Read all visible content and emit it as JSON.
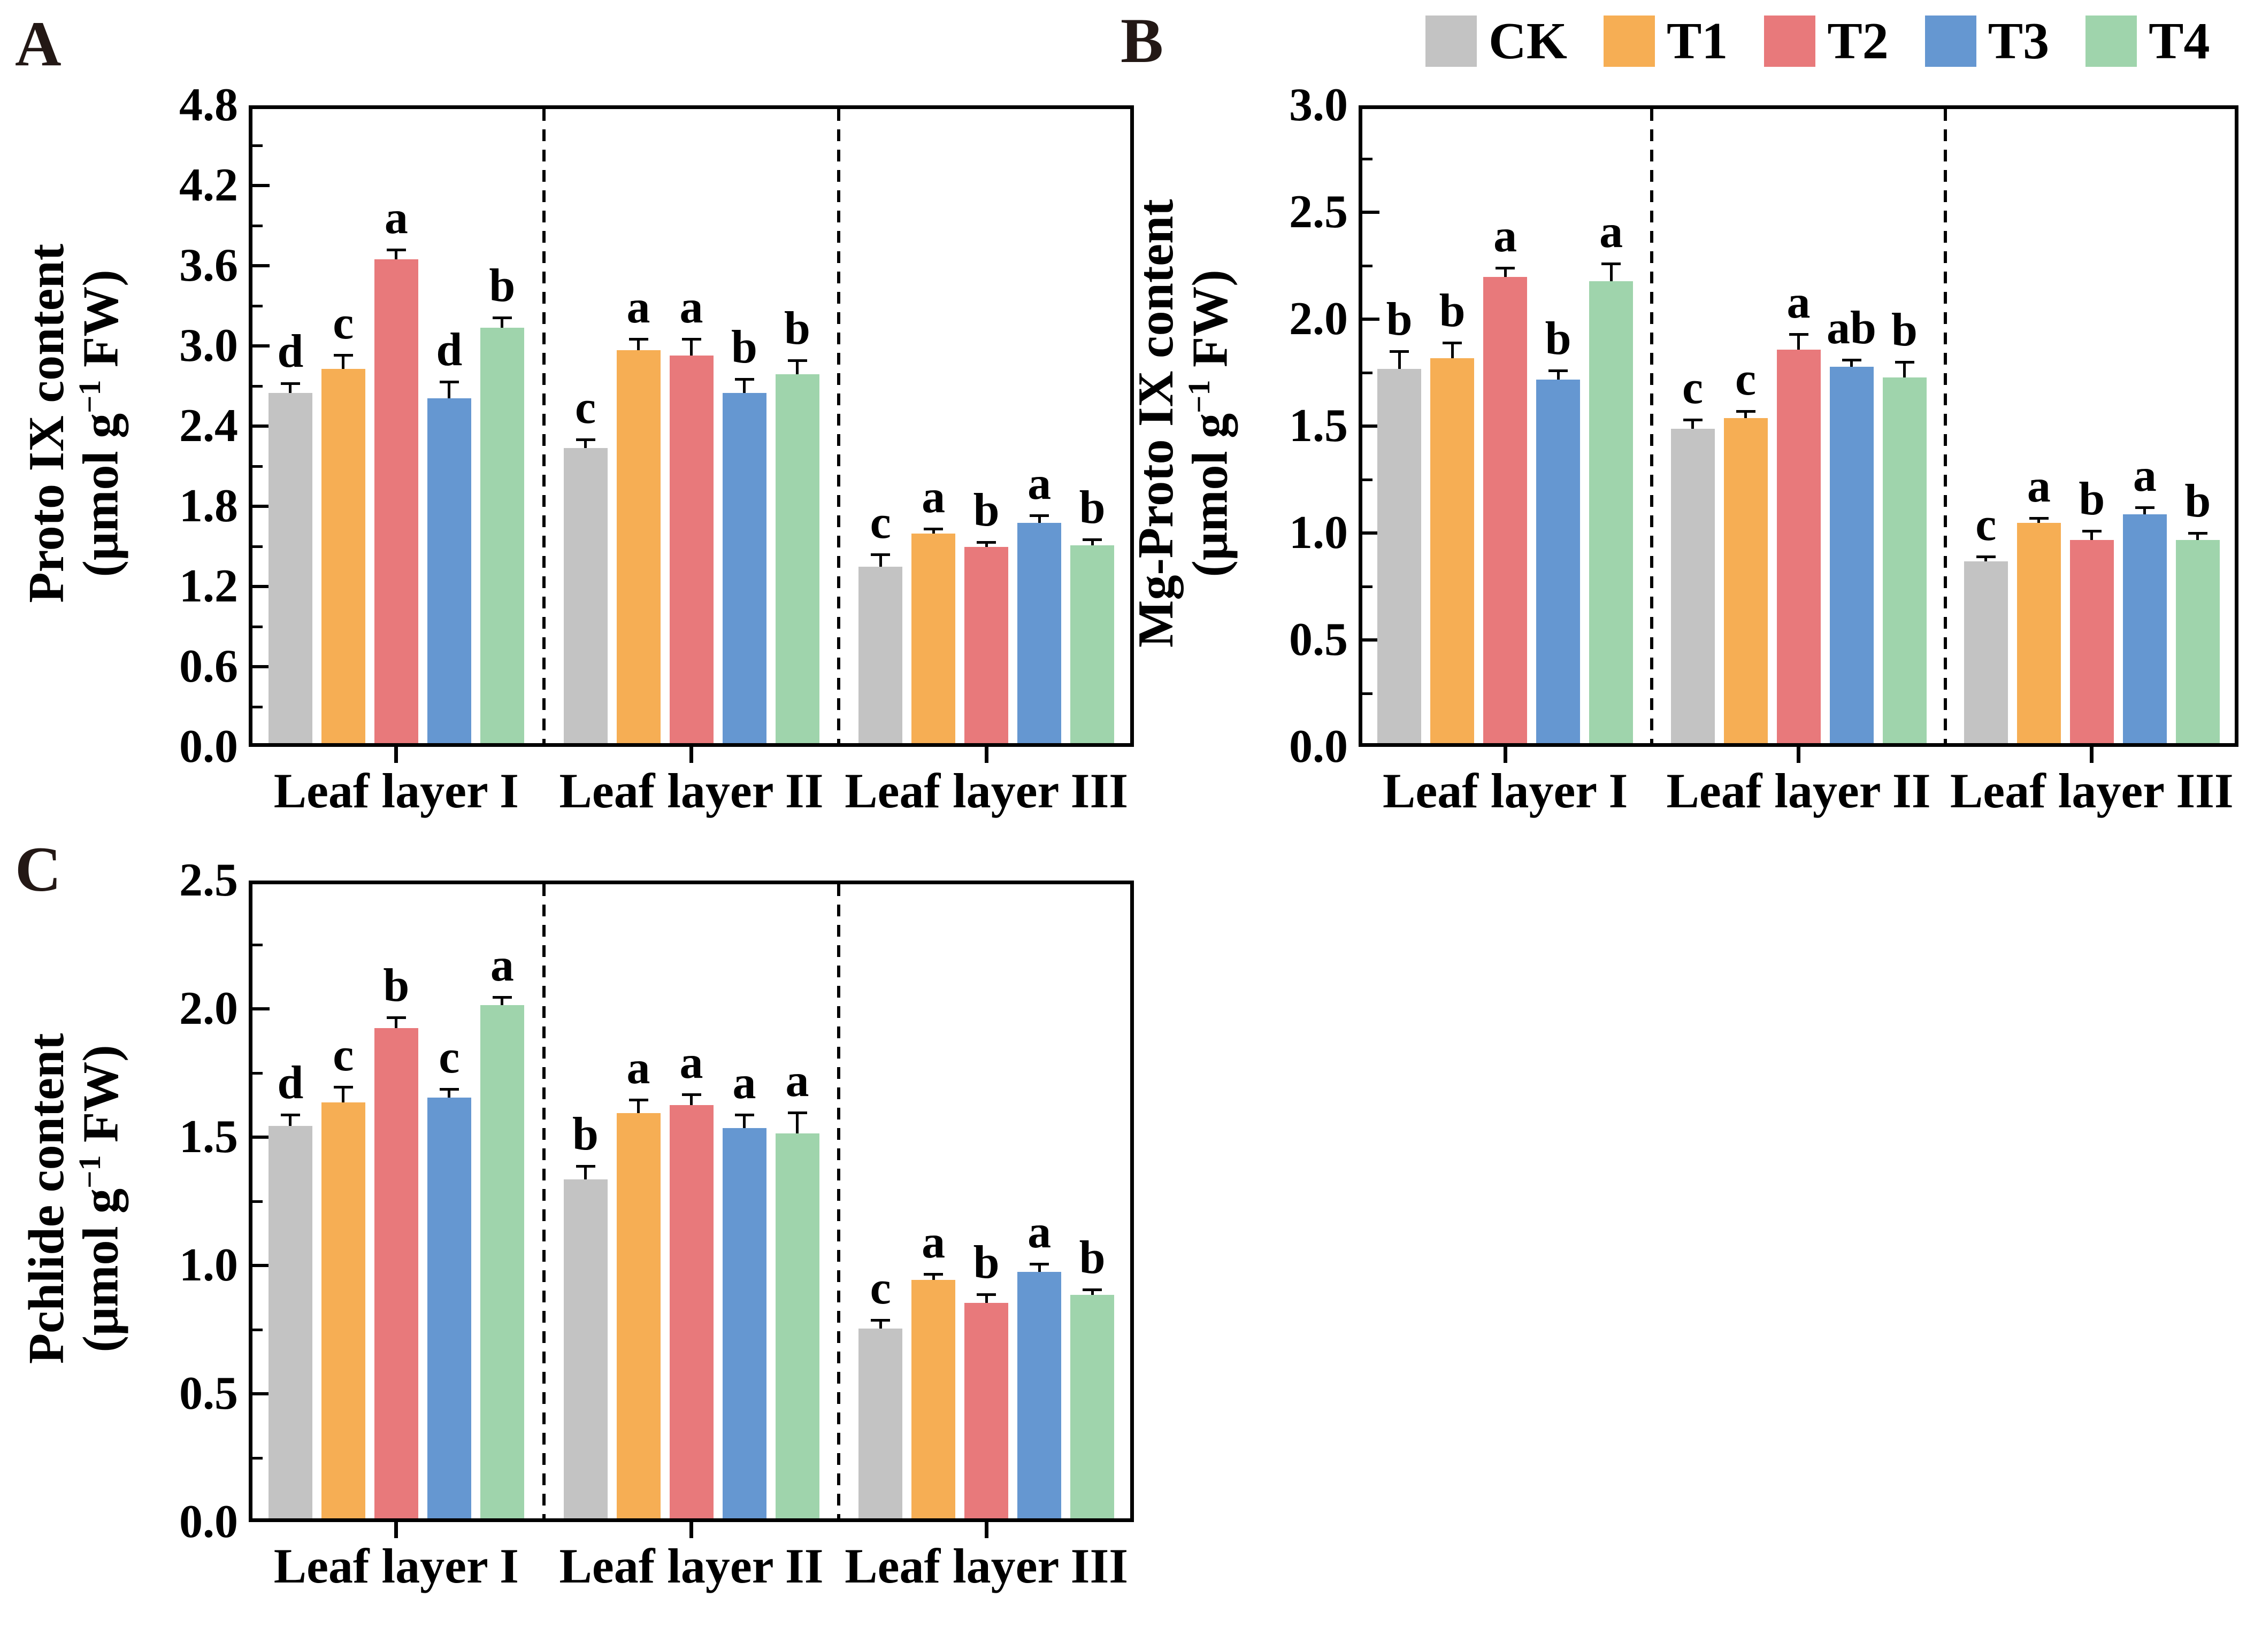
{
  "figure_title": "",
  "legend": {
    "items": [
      {
        "label": "CK",
        "color": "#C3C3C3"
      },
      {
        "label": "T1",
        "color": "#F6AE54"
      },
      {
        "label": "T2",
        "color": "#E8797B"
      },
      {
        "label": "T3",
        "color": "#6597D1"
      },
      {
        "label": "T4",
        "color": "#9FD4AC"
      }
    ]
  },
  "chart_data": [
    {
      "type": "bar",
      "panel": "A",
      "ylabel": "Proto IX content",
      "unit_pre": "(μmol g",
      "unit_sup": "−1",
      "unit_post": " FW)",
      "categories": [
        "Leaf layer I",
        "Leaf layer II",
        "Leaf layer III"
      ],
      "ylim": [
        0,
        4.8
      ],
      "ytick_step": 0.6,
      "yminor_step": 0.3,
      "ytick_decimals": 1,
      "grid": false,
      "legend_position": "top-right",
      "series": [
        {
          "name": "CK",
          "color": "#C3C3C3",
          "values": [
            2.62,
            2.21,
            1.32
          ],
          "errors": [
            0.07,
            0.06,
            0.09
          ],
          "letters": [
            "d",
            "c",
            "c"
          ]
        },
        {
          "name": "T1",
          "color": "#F6AE54",
          "values": [
            2.8,
            2.94,
            1.57
          ],
          "errors": [
            0.1,
            0.08,
            0.03
          ],
          "letters": [
            "c",
            "a",
            "a"
          ]
        },
        {
          "name": "T2",
          "color": "#E8797B",
          "values": [
            3.62,
            2.9,
            1.47
          ],
          "errors": [
            0.07,
            0.12,
            0.03
          ],
          "letters": [
            "a",
            "a",
            "b"
          ]
        },
        {
          "name": "T3",
          "color": "#6597D1",
          "values": [
            2.58,
            2.62,
            1.65
          ],
          "errors": [
            0.12,
            0.1,
            0.05
          ],
          "letters": [
            "d",
            "b",
            "a"
          ]
        },
        {
          "name": "T4",
          "color": "#9FD4AC",
          "values": [
            3.11,
            2.76,
            1.48
          ],
          "errors": [
            0.07,
            0.1,
            0.04
          ],
          "letters": [
            "b",
            "b",
            "b"
          ]
        }
      ]
    },
    {
      "type": "bar",
      "panel": "B",
      "ylabel": "Mg-Proto IX content",
      "unit_pre": "(μmol g",
      "unit_sup": "−1",
      "unit_post": " FW)",
      "categories": [
        "Leaf layer I",
        "Leaf layer II",
        "Leaf layer III"
      ],
      "ylim": [
        0,
        3.0
      ],
      "ytick_step": 0.5,
      "yminor_step": 0.25,
      "ytick_decimals": 1,
      "grid": false,
      "legend_position": "top-right",
      "series": [
        {
          "name": "CK",
          "color": "#C3C3C3",
          "values": [
            1.75,
            1.47,
            0.85
          ],
          "errors": [
            0.08,
            0.04,
            0.02
          ],
          "letters": [
            "b",
            "c",
            "c"
          ]
        },
        {
          "name": "T1",
          "color": "#F6AE54",
          "values": [
            1.8,
            1.52,
            1.03
          ],
          "errors": [
            0.07,
            0.03,
            0.02
          ],
          "letters": [
            "b",
            "c",
            "a"
          ]
        },
        {
          "name": "T2",
          "color": "#E8797B",
          "values": [
            2.18,
            1.84,
            0.95
          ],
          "errors": [
            0.04,
            0.07,
            0.04
          ],
          "letters": [
            "a",
            "a",
            "b"
          ]
        },
        {
          "name": "T3",
          "color": "#6597D1",
          "values": [
            1.7,
            1.76,
            1.07
          ],
          "errors": [
            0.04,
            0.03,
            0.03
          ],
          "letters": [
            "b",
            "ab",
            "a"
          ]
        },
        {
          "name": "T4",
          "color": "#9FD4AC",
          "values": [
            2.16,
            1.71,
            0.95
          ],
          "errors": [
            0.08,
            0.07,
            0.03
          ],
          "letters": [
            "a",
            "b",
            "b"
          ]
        }
      ]
    },
    {
      "type": "bar",
      "panel": "C",
      "ylabel": "Pchlide content",
      "unit_pre": "(μmol g",
      "unit_sup": "−1",
      "unit_post": " FW)",
      "categories": [
        "Leaf layer I",
        "Leaf layer II",
        "Leaf layer III"
      ],
      "ylim": [
        0,
        2.5
      ],
      "ytick_step": 0.5,
      "yminor_step": 0.25,
      "ytick_decimals": 1,
      "grid": false,
      "legend_position": "none",
      "series": [
        {
          "name": "CK",
          "color": "#C3C3C3",
          "values": [
            1.53,
            1.32,
            0.74
          ],
          "errors": [
            0.04,
            0.05,
            0.03
          ],
          "letters": [
            "d",
            "b",
            "c"
          ]
        },
        {
          "name": "T1",
          "color": "#F6AE54",
          "values": [
            1.62,
            1.58,
            0.93
          ],
          "errors": [
            0.06,
            0.05,
            0.02
          ],
          "letters": [
            "c",
            "a",
            "a"
          ]
        },
        {
          "name": "T2",
          "color": "#E8797B",
          "values": [
            1.91,
            1.61,
            0.84
          ],
          "errors": [
            0.04,
            0.04,
            0.03
          ],
          "letters": [
            "b",
            "a",
            "b"
          ]
        },
        {
          "name": "T3",
          "color": "#6597D1",
          "values": [
            1.64,
            1.52,
            0.96
          ],
          "errors": [
            0.03,
            0.05,
            0.03
          ],
          "letters": [
            "c",
            "a",
            "a"
          ]
        },
        {
          "name": "T4",
          "color": "#9FD4AC",
          "values": [
            2.0,
            1.5,
            0.87
          ],
          "errors": [
            0.03,
            0.08,
            0.02
          ],
          "letters": [
            "a",
            "a",
            "b"
          ]
        }
      ]
    }
  ]
}
